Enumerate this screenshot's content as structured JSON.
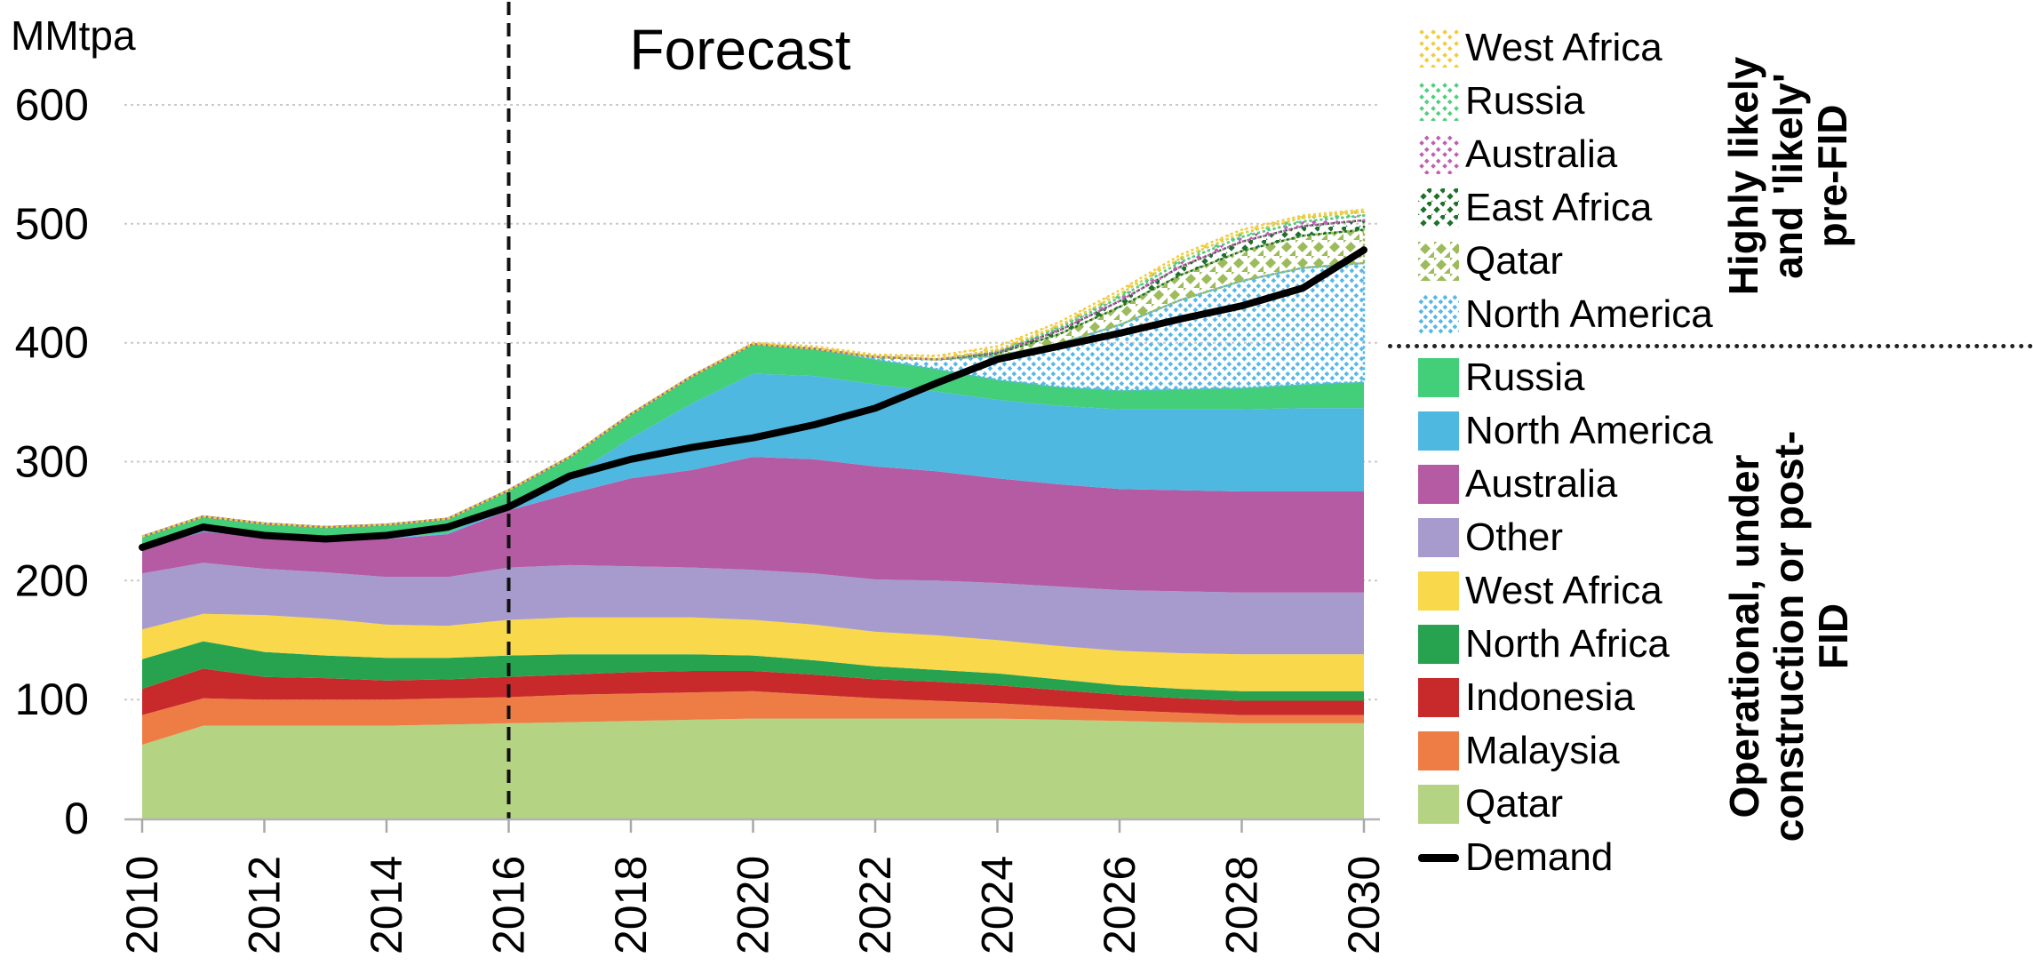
{
  "chart_data": {
    "type": "area",
    "title": "Forecast",
    "unit_label": "MMtpa",
    "grid": true,
    "legend_position": "right",
    "ylim": [
      0,
      600
    ],
    "forecast_divider_x": 2016,
    "x": [
      2010,
      2011,
      2012,
      2013,
      2014,
      2015,
      2016,
      2017,
      2018,
      2019,
      2020,
      2021,
      2022,
      2023,
      2024,
      2025,
      2026,
      2027,
      2028,
      2029,
      2030
    ],
    "x_ticks": [
      "2010",
      "2012",
      "2014",
      "2016",
      "2018",
      "2020",
      "2022",
      "2024",
      "2026",
      "2028",
      "2030"
    ],
    "y_tick_labels": [
      "0",
      "100",
      "200",
      "300",
      "400",
      "500",
      "600"
    ],
    "stack_series": [
      {
        "key": "qatar",
        "name": "Qatar",
        "color": "#b4d383",
        "values": [
          62,
          78,
          78,
          78,
          78,
          79,
          80,
          81,
          82,
          83,
          84,
          84,
          84,
          84,
          84,
          83,
          82,
          81,
          80,
          80,
          80
        ]
      },
      {
        "key": "malaysia",
        "name": "Malaysia",
        "color": "#ee7c45",
        "values": [
          25,
          23,
          22,
          22,
          22,
          22,
          22,
          23,
          23,
          23,
          23,
          20,
          17,
          15,
          13,
          11,
          9,
          8,
          7,
          7,
          7
        ]
      },
      {
        "key": "indonesia",
        "name": "Indonesia",
        "color": "#c8292a",
        "values": [
          22,
          25,
          19,
          18,
          16,
          16,
          17,
          17,
          18,
          18,
          17,
          17,
          16,
          16,
          15,
          14,
          13,
          12,
          12,
          12,
          12
        ]
      },
      {
        "key": "nafrica",
        "name": "North Africa",
        "color": "#27a350",
        "values": [
          25,
          23,
          21,
          19,
          19,
          18,
          18,
          17,
          15,
          14,
          13,
          12,
          11,
          10,
          10,
          9,
          8,
          8,
          8,
          8,
          8
        ]
      },
      {
        "key": "wafrica",
        "name": "West Africa",
        "color": "#f9d84b",
        "values": [
          25,
          23,
          31,
          31,
          28,
          27,
          30,
          31,
          31,
          31,
          30,
          30,
          29,
          29,
          28,
          28,
          29,
          30,
          31,
          31,
          31
        ]
      },
      {
        "key": "other",
        "name": "Other",
        "color": "#a79bce",
        "values": [
          47,
          43,
          39,
          39,
          40,
          41,
          44,
          44,
          43,
          42,
          42,
          43,
          44,
          46,
          48,
          50,
          51,
          52,
          52,
          52,
          52
        ]
      },
      {
        "key": "australia",
        "name": "Australia",
        "color": "#b45ba4",
        "values": [
          21,
          26,
          27,
          27,
          32,
          36,
          48,
          60,
          74,
          82,
          95,
          96,
          95,
          92,
          88,
          86,
          85,
          85,
          85,
          85,
          85
        ]
      },
      {
        "key": "namerica",
        "name": "North America",
        "color": "#4fb8e0",
        "values": [
          1,
          1,
          1,
          1,
          1,
          1,
          3,
          14,
          34,
          56,
          70,
          70,
          69,
          67,
          66,
          66,
          67,
          68,
          69,
          70,
          70
        ]
      },
      {
        "key": "russia",
        "name": "Russia",
        "color": "#43ce79",
        "values": [
          9,
          12,
          10,
          10,
          11,
          12,
          14,
          17,
          20,
          23,
          25,
          23,
          21,
          19,
          17,
          16,
          16,
          17,
          18,
          20,
          22
        ]
      }
    ],
    "prefid_series": [
      {
        "key": "nam",
        "name": "North America",
        "color": "#57b8e8",
        "values": [
          0,
          0,
          0,
          0,
          0,
          0,
          0,
          0,
          0,
          0,
          0,
          0,
          2,
          8,
          20,
          36,
          55,
          75,
          90,
          98,
          100
        ]
      },
      {
        "key": "qat",
        "name": "Qatar",
        "color": "#9dbb5a",
        "values": [
          0,
          0,
          0,
          0,
          0,
          0,
          0,
          0,
          0,
          0,
          0,
          0,
          0,
          0,
          2,
          8,
          15,
          21,
          25,
          27,
          28
        ]
      },
      {
        "key": "eaf",
        "name": "East Africa",
        "color": "#20702c",
        "values": [
          0,
          0,
          0,
          0,
          0,
          0,
          0,
          0,
          0,
          0,
          0,
          0,
          0,
          0,
          1,
          3,
          5,
          7,
          8,
          8,
          8
        ]
      },
      {
        "key": "aus",
        "name": "Australia",
        "color": "#c05fb0",
        "values": [
          0,
          0,
          0,
          0,
          0,
          0,
          0,
          0,
          0,
          0,
          0,
          0,
          0,
          0,
          1,
          2,
          3,
          4,
          4,
          4,
          4
        ]
      },
      {
        "key": "rus",
        "name": "Russia",
        "color": "#4ecf7c",
        "values": [
          0,
          0,
          0,
          0,
          0,
          0,
          0,
          0,
          0,
          0,
          0,
          0,
          0,
          0,
          1,
          2,
          3,
          3,
          3,
          3,
          3
        ]
      },
      {
        "key": "waf",
        "name": "West Africa",
        "color": "#f0cc3e",
        "values": [
          0,
          0,
          0,
          0,
          0,
          0,
          0,
          0,
          0,
          0,
          1,
          2,
          2,
          3,
          3,
          3,
          3,
          3,
          3,
          2,
          2
        ]
      }
    ],
    "demand_series": {
      "key": "demand",
      "name": "Demand",
      "color": "#000000",
      "values": [
        228,
        245,
        238,
        235,
        238,
        245,
        262,
        288,
        302,
        312,
        320,
        331,
        345,
        366,
        386,
        397,
        408,
        420,
        431,
        446,
        478
      ]
    }
  },
  "legend": {
    "prefid_group": {
      "label_lines": [
        "Highly likely",
        "and 'likely'",
        "pre-FID"
      ],
      "items": [
        {
          "label": "West Africa"
        },
        {
          "label": "Russia"
        },
        {
          "label": "Australia"
        },
        {
          "label": "East Africa"
        },
        {
          "label": "Qatar"
        },
        {
          "label": "North America"
        }
      ]
    },
    "postfid_group": {
      "label_lines": [
        "Operational, under",
        "construction or post-",
        "FID"
      ],
      "items": [
        {
          "label": "Russia"
        },
        {
          "label": "North America"
        },
        {
          "label": "Australia"
        },
        {
          "label": "Other"
        },
        {
          "label": "West Africa"
        },
        {
          "label": "North Africa"
        },
        {
          "label": "Indonesia"
        },
        {
          "label": "Malaysia"
        },
        {
          "label": "Qatar"
        },
        {
          "label": "Demand"
        }
      ]
    }
  }
}
